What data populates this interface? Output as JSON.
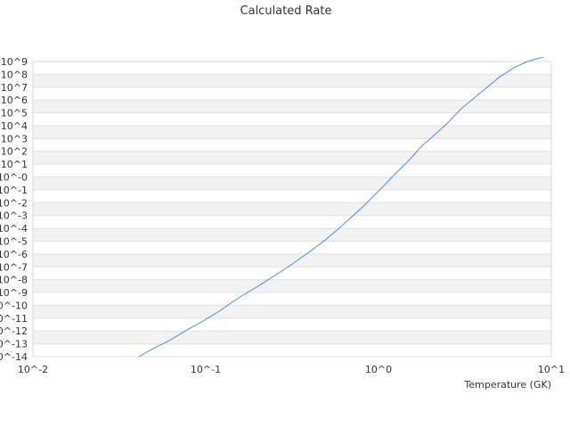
{
  "chart_data": {
    "type": "line",
    "title": "Calculated Rate",
    "xlabel": "Temperature (GK)",
    "ylabel": "",
    "x_scale": "log",
    "y_scale": "log",
    "xlim": [
      0.01,
      10
    ],
    "ylim": [
      1e-14,
      1000000000.0
    ],
    "grid": "horizontal-bands",
    "legend": "none",
    "x_tick_labels": [
      "10^-2",
      "10^-1",
      "10^0",
      "10^1"
    ],
    "y_tick_labels": [
      "10^9",
      "10^8",
      "10^7",
      "10^6",
      "10^5",
      "10^4",
      "10^3",
      "10^2",
      "10^1",
      "10^-0",
      "10^-1",
      "10^-2",
      "10^-3",
      "10^-4",
      "10^-5",
      "10^-6",
      "10^-7",
      "10^-8",
      "10^-9",
      "10^-10",
      "10^-11",
      "10^-12",
      "10^-13",
      "10^-14"
    ],
    "series": [
      {
        "color": "#4a90d9",
        "x": [
          0.041,
          0.05,
          0.06,
          0.07,
          0.08,
          0.09,
          0.1,
          0.12,
          0.14,
          0.16,
          0.2,
          0.25,
          0.3,
          0.4,
          0.5,
          0.6,
          0.7,
          0.8,
          1.0,
          1.2,
          1.5,
          1.8,
          2.0,
          2.5,
          3.0,
          4.0,
          5.0,
          6.0,
          7.0,
          8.0,
          9.0
        ],
        "y": [
          1e-14,
          4.5e-14,
          1.5e-13,
          5e-13,
          1.5e-12,
          3.5e-12,
          8e-12,
          3.5e-11,
          1.5e-10,
          5e-10,
          3e-09,
          2e-08,
          1e-07,
          1.5e-06,
          1.5e-05,
          0.00012,
          0.0008,
          0.004,
          0.08,
          1,
          20,
          300,
          1000,
          15000,
          200000,
          5000000,
          60000000,
          300000000,
          800000000,
          1500000000,
          2200000000
        ]
      }
    ]
  }
}
